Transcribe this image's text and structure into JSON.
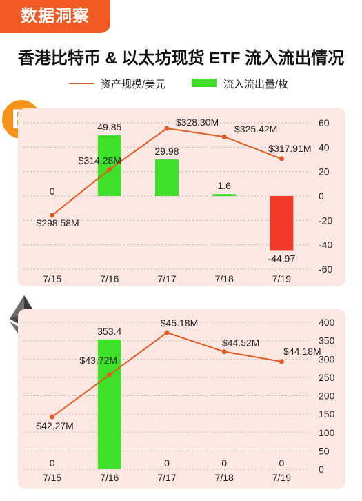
{
  "header": {
    "tag": "数据洞察",
    "title": "香港比特币 & 以太坊现货 ETF 流入流出情况"
  },
  "legend": {
    "line_label": "资产规模/美元",
    "bar_label": "流入流出量/枚"
  },
  "colors": {
    "accent": "#f15a22",
    "line": "#e55a1f",
    "inflow": "#3ee02a",
    "outflow": "#f23a2a",
    "panel": "#fce8e2",
    "btc": "#f7931a"
  },
  "icons": {
    "btc": "bitcoin-icon",
    "eth": "ethereum-icon"
  },
  "btc_logo_glyph": "B",
  "chart_data": [
    {
      "type": "bar",
      "name": "BTC",
      "categories": [
        "7/15",
        "7/16",
        "7/17",
        "7/18",
        "7/19"
      ],
      "bar_values": [
        0,
        49.85,
        29.98,
        1.6,
        -44.97
      ],
      "bar_labels": [
        "0",
        "49.85",
        "29.98",
        "1.6",
        "-44.97"
      ],
      "line_values": [
        298.58,
        314.28,
        328.3,
        325.42,
        317.91
      ],
      "line_labels": [
        "$298.58M",
        "$314.28M",
        "$328.30M",
        "$325.42M",
        "$317.91M"
      ],
      "ylim": [
        -60,
        60
      ],
      "yticks": [
        60,
        40,
        20,
        0,
        -20,
        -40,
        -60
      ],
      "grid": true
    },
    {
      "type": "bar",
      "name": "ETH",
      "categories": [
        "7/15",
        "7/16",
        "7/17",
        "7/18",
        "7/19"
      ],
      "bar_values": [
        0,
        353.4,
        0,
        0,
        0
      ],
      "bar_labels": [
        "0",
        "353.4",
        "0",
        "0",
        "0"
      ],
      "line_values": [
        42.27,
        43.72,
        45.18,
        44.52,
        44.18
      ],
      "line_labels": [
        "$42.27M",
        "$43.72M",
        "$45.18M",
        "$44.52M",
        "$44.18M"
      ],
      "ylim": [
        0,
        400
      ],
      "yticks": [
        400,
        350,
        300,
        250,
        200,
        150,
        100,
        50,
        0
      ],
      "grid": true
    }
  ]
}
